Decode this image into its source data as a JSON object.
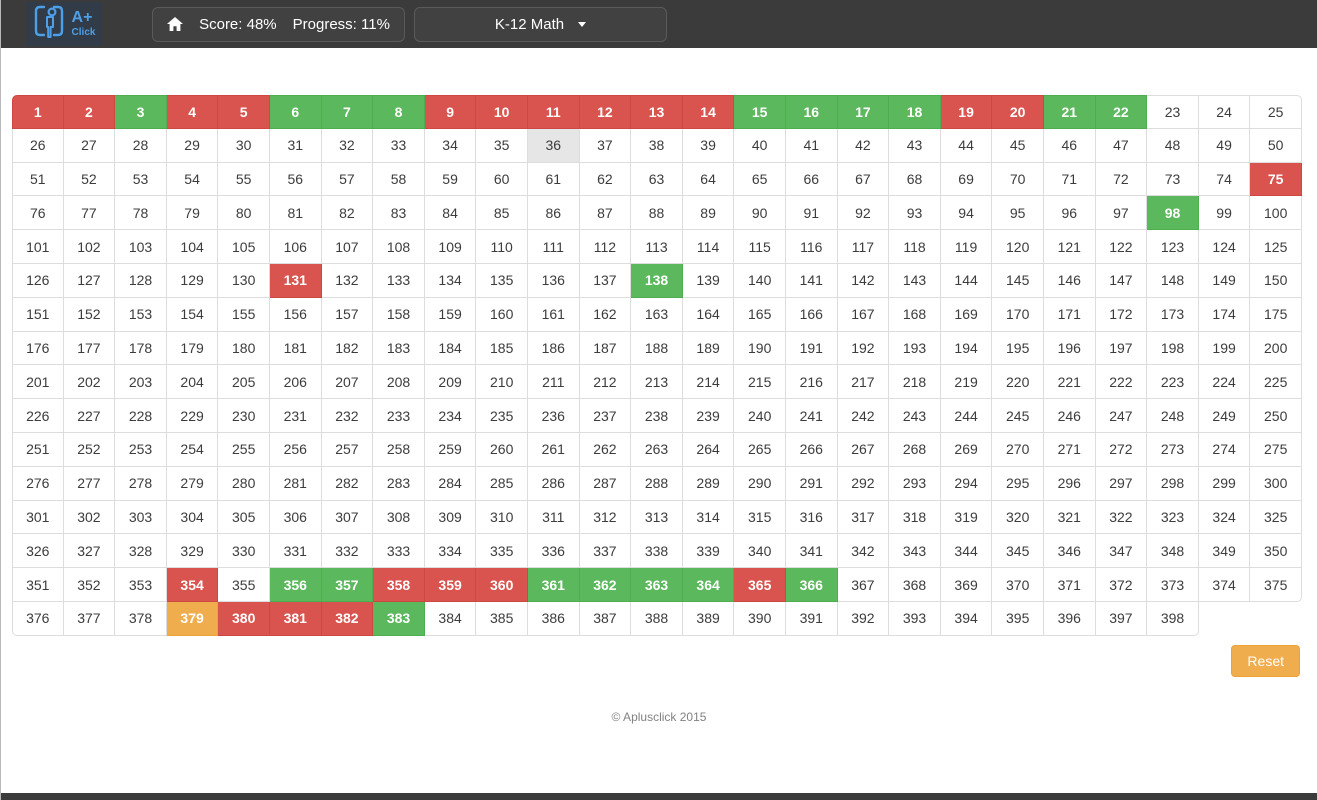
{
  "header": {
    "logo": {
      "line1": "A+",
      "line2": "Click"
    },
    "score_label": "Score: 48%",
    "progress_label": "Progress: 11%",
    "course_selector": "K-12 Math"
  },
  "grid": {
    "total_cells": 398,
    "columns": 25,
    "states": {
      "red": [
        1,
        2,
        4,
        5,
        9,
        10,
        11,
        12,
        13,
        14,
        19,
        20,
        75,
        131,
        354,
        358,
        359,
        360,
        365,
        380,
        381,
        382
      ],
      "green": [
        3,
        6,
        7,
        8,
        15,
        16,
        17,
        18,
        21,
        22,
        98,
        138,
        356,
        357,
        361,
        362,
        363,
        364,
        366,
        383
      ],
      "orange": [
        379
      ],
      "selected": [
        36
      ]
    }
  },
  "footer": {
    "reset_label": "Reset",
    "copyright": "© Aplusclick 2015"
  },
  "colors": {
    "red": "#d9534f",
    "green": "#5cb85c",
    "orange": "#f0ad4e",
    "selected": "#e6e6e6",
    "header_bg": "#3b3b3b",
    "accent_blue": "#4d9fe8"
  }
}
